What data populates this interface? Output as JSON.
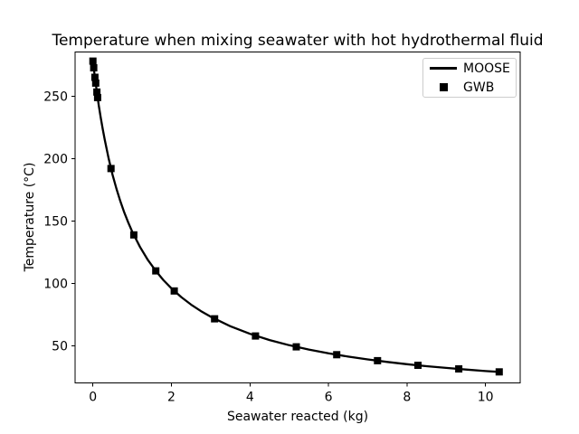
{
  "chart_data": {
    "type": "line",
    "title": "Temperature when mixing seawater with hot hydrothermal fluid",
    "xlabel": "Seawater reacted (kg)",
    "ylabel": "Temperature (°C)",
    "xlim": [
      -0.455,
      10.885
    ],
    "ylim": [
      20.3,
      285.3
    ],
    "xticks": [
      0,
      2,
      4,
      6,
      8,
      10
    ],
    "yticks": [
      50,
      100,
      150,
      200,
      250
    ],
    "grid": false,
    "legend_position": "upper right",
    "colors": {
      "background": "#ffffff",
      "line": "#000000",
      "marker": "#000000",
      "spine": "#000000",
      "tick_label": "#000000",
      "legend_border": "#cccccc"
    },
    "series": [
      {
        "name": "MOOSE",
        "type": "line",
        "x": [
          0,
          0.05,
          0.1,
          0.15,
          0.2,
          0.25,
          0.3,
          0.4,
          0.5,
          0.6,
          0.7,
          0.8,
          0.9,
          1.0,
          1.2,
          1.4,
          1.6,
          1.8,
          2.0,
          2.25,
          2.5,
          2.75,
          3.0,
          3.5,
          4.0,
          4.5,
          5.0,
          5.5,
          6.0,
          6.5,
          7.0,
          7.5,
          8.0,
          8.5,
          9.0,
          9.5,
          10.0,
          10.35
        ],
        "y": [
          278,
          265.0,
          253.2,
          242.4,
          232.5,
          223.4,
          215.0,
          200.0,
          187.0,
          175.6,
          165.6,
          156.7,
          148.7,
          141.5,
          129.1,
          118.7,
          110.0,
          102.5,
          96.0,
          89.0,
          83.0,
          77.8,
          73.3,
          65.7,
          59.6,
          54.6,
          50.5,
          47.0,
          44.0,
          41.4,
          39.1,
          37.1,
          35.3,
          33.7,
          32.3,
          31.0,
          29.8,
          29.1
        ]
      },
      {
        "name": "GWB",
        "type": "scatter",
        "marker": "square",
        "x": [
          0,
          0.02,
          0.05,
          0.07,
          0.1,
          0.12,
          0.46,
          1.04,
          1.6,
          2.07,
          3.1,
          4.14,
          5.18,
          6.21,
          7.25,
          8.28,
          9.32,
          10.35
        ],
        "y": [
          278,
          272.6,
          265.0,
          260.4,
          253.2,
          248.8,
          192.0,
          138.8,
          110.0,
          93.9,
          71.6,
          57.9,
          49.2,
          42.9,
          38.1,
          34.4,
          31.5,
          29.1
        ]
      }
    ]
  },
  "legend": {
    "items": [
      {
        "label": "MOOSE",
        "swatch": "line"
      },
      {
        "label": "GWB",
        "swatch": "square"
      }
    ]
  }
}
